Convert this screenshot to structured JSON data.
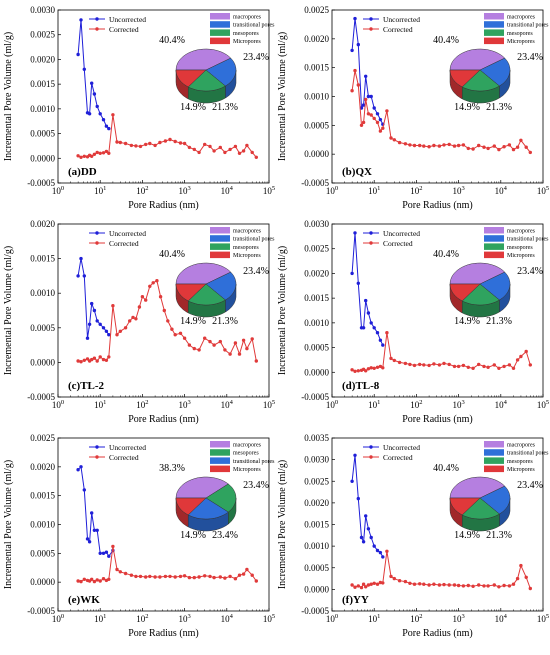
{
  "pie_colors": {
    "macropores": "#b57fe0",
    "transitional pores": "#2f6fd9",
    "mesopores": "#2fa35f",
    "Micropores": "#e0383a"
  },
  "line_colors": {
    "Uncorrected": "#1f1fd8",
    "Corrected": "#e03a3a"
  },
  "chart_data": [
    {
      "type": "line",
      "label": "(a)DD",
      "xlabel": "Pore Radius (nm)",
      "ylabel": "Incremental Pore Volume (ml/g)",
      "xscale": "log",
      "xlim": [
        1,
        100000
      ],
      "xticks": [
        "10^0",
        "10^1",
        "10^2",
        "10^3",
        "10^4",
        "10^5"
      ],
      "ylim": [
        -0.0005,
        0.003
      ],
      "yticks": [
        "-0.0005",
        "0.0000",
        "0.0005",
        "0.0010",
        "0.0015",
        "0.0020",
        "0.0025",
        "0.0030"
      ],
      "legend": "top-left",
      "series": [
        {
          "name": "Uncorrected",
          "x": [
            3,
            3.5,
            4.2,
            5,
            5.6,
            6.3,
            7.3,
            8.5,
            10,
            12,
            14,
            16
          ],
          "y": [
            0.0021,
            0.0028,
            0.0018,
            0.00092,
            0.0009,
            0.00152,
            0.0013,
            0.00105,
            0.0009,
            0.00078,
            0.00065,
            0.0006
          ]
        },
        {
          "name": "Corrected",
          "x": [
            3,
            3.5,
            4.2,
            5,
            5.6,
            6.3,
            7.3,
            8.5,
            10,
            12,
            14,
            16,
            20,
            25,
            30,
            40,
            55,
            70,
            90,
            120,
            150,
            200,
            260,
            350,
            450,
            600,
            800,
            1000,
            1300,
            1700,
            2200,
            3000,
            4000,
            5000,
            7000,
            9000,
            12000,
            16000,
            20000,
            25000,
            30000,
            40000,
            50000
          ],
          "y": [
            5e-05,
            2e-05,
            4e-05,
            3e-05,
            6e-05,
            4e-05,
            8e-05,
            0.00012,
            0.0001,
            0.00011,
            0.00014,
            0.0001,
            0.00088,
            0.00033,
            0.00032,
            0.0003,
            0.00026,
            0.00025,
            0.00024,
            0.00028,
            0.0003,
            0.00026,
            0.00032,
            0.00035,
            0.00038,
            0.00034,
            0.00031,
            0.0003,
            0.00022,
            0.00018,
            0.00012,
            0.00028,
            0.00024,
            0.00015,
            0.00022,
            0.00012,
            0.00018,
            0.00024,
            0.0001,
            0.00015,
            0.00026,
            0.00012,
            2e-05
          ]
        }
      ],
      "pie": {
        "labels": [
          "macropores",
          "transitional pores",
          "mesopores",
          "Micropores"
        ],
        "values": [
          40.4,
          23.4,
          21.3,
          14.9
        ],
        "texts": [
          "40.4%",
          "23.4%",
          "21.3%",
          "14.9%"
        ]
      }
    },
    {
      "type": "line",
      "label": "(b)QX",
      "xlabel": "Pore Radius (nm)",
      "ylabel": "Incremental Pore Volume (ml/g)",
      "xscale": "log",
      "xlim": [
        1,
        100000
      ],
      "xticks": [
        "10^0",
        "10^1",
        "10^2",
        "10^3",
        "10^4",
        "10^5"
      ],
      "ylim": [
        -0.0005,
        0.0025
      ],
      "yticks": [
        "-0.0005",
        "0.0000",
        "0.0005",
        "0.0010",
        "0.0015",
        "0.0020",
        "0.0025"
      ],
      "legend": "top-left",
      "series": [
        {
          "name": "Uncorrected",
          "x": [
            3,
            3.5,
            4.2,
            5,
            5.6,
            6.3,
            7.3,
            8.5,
            10,
            12,
            14,
            16
          ],
          "y": [
            0.0018,
            0.00235,
            0.0019,
            0.0008,
            0.00085,
            0.00135,
            0.001,
            0.001,
            0.0008,
            0.0007,
            0.0006,
            0.00052
          ]
        },
        {
          "name": "Corrected",
          "x": [
            3,
            3.5,
            4.2,
            5,
            5.6,
            6.3,
            7.3,
            8.5,
            10,
            12,
            14,
            16,
            20,
            25,
            30,
            40,
            55,
            70,
            90,
            120,
            150,
            200,
            260,
            350,
            450,
            600,
            800,
            1000,
            1300,
            1700,
            2200,
            3000,
            4000,
            5000,
            7000,
            9000,
            12000,
            16000,
            20000,
            25000,
            30000,
            40000,
            50000
          ],
          "y": [
            0.0011,
            0.00145,
            0.0012,
            0.0005,
            0.00055,
            0.00095,
            0.0007,
            0.00068,
            0.00062,
            0.00055,
            0.0004,
            0.00045,
            0.00075,
            0.00028,
            0.00025,
            0.0002,
            0.00018,
            0.00016,
            0.00015,
            0.00015,
            0.00014,
            0.00013,
            0.00015,
            0.00014,
            0.00016,
            0.00017,
            0.00014,
            0.00015,
            0.00016,
            0.0001,
            9e-05,
            0.00015,
            0.00012,
            0.0001,
            0.00014,
            8e-05,
            0.00013,
            0.00016,
            8e-05,
            0.00012,
            0.00024,
            0.00012,
            3e-05
          ]
        }
      ],
      "pie": {
        "labels": [
          "macropores",
          "transitional pores",
          "mesopores",
          "Micropores"
        ],
        "values": [
          40.4,
          23.4,
          21.3,
          14.9
        ],
        "texts": [
          "40.4%",
          "23.4%",
          "21.3%",
          "14.9%"
        ]
      }
    },
    {
      "type": "line",
      "label": "(c)TL-2",
      "xlabel": "Pore Radius (nm)",
      "ylabel": "Incremental Pore Volume (ml/g)",
      "xscale": "log",
      "xlim": [
        1,
        100000
      ],
      "xticks": [
        "10^0",
        "10^1",
        "10^2",
        "10^3",
        "10^4",
        "10^5"
      ],
      "ylim": [
        -0.0005,
        0.002
      ],
      "yticks": [
        "-0.0005",
        "0.0000",
        "0.0005",
        "0.0010",
        "0.0015",
        "0.0020"
      ],
      "legend": "top-left",
      "series": [
        {
          "name": "Uncorrected",
          "x": [
            3,
            3.5,
            4.2,
            5,
            5.6,
            6.3,
            7.3,
            8.5,
            10,
            12,
            14,
            16
          ],
          "y": [
            0.00125,
            0.0015,
            0.00125,
            0.00035,
            0.00055,
            0.00085,
            0.00075,
            0.0006,
            0.00055,
            0.0005,
            0.00045,
            0.0004
          ]
        },
        {
          "name": "Corrected",
          "x": [
            3,
            3.5,
            4.2,
            5,
            5.6,
            6.3,
            7.3,
            8.5,
            10,
            12,
            14,
            16,
            20,
            25,
            30,
            40,
            50,
            60,
            70,
            85,
            100,
            120,
            150,
            180,
            220,
            270,
            330,
            400,
            500,
            600,
            800,
            1000,
            1300,
            1700,
            2200,
            3000,
            4000,
            5000,
            7000,
            9000,
            12000,
            16000,
            20000,
            25000,
            30000,
            40000,
            50000
          ],
          "y": [
            2e-05,
            1e-05,
            3e-05,
            5e-05,
            2e-05,
            4e-05,
            6e-05,
            2e-05,
            8e-05,
            4e-05,
            3e-05,
            8e-05,
            0.00082,
            0.0004,
            0.00045,
            0.0005,
            0.0006,
            0.00065,
            0.00063,
            0.0008,
            0.00095,
            0.0009,
            0.0011,
            0.00115,
            0.00118,
            0.00095,
            0.00075,
            0.0006,
            0.00048,
            0.0004,
            0.00042,
            0.00035,
            0.00025,
            0.0002,
            0.00018,
            0.00035,
            0.0003,
            0.00025,
            0.0003,
            0.00018,
            0.00012,
            0.00028,
            0.00012,
            0.00032,
            0.0002,
            0.00034,
            2e-05
          ]
        }
      ],
      "pie": {
        "labels": [
          "macropores",
          "transitional pores",
          "mesopores",
          "Micropores"
        ],
        "values": [
          40.4,
          23.4,
          21.3,
          14.9
        ],
        "texts": [
          "40.4%",
          "23.4%",
          "21.3%",
          "14.9%"
        ]
      }
    },
    {
      "type": "line",
      "label": "(d)TL-8",
      "xlabel": "Pore Radius (nm)",
      "ylabel": "Incremental Pore Volume (ml/g)",
      "xscale": "log",
      "xlim": [
        1,
        100000
      ],
      "xticks": [
        "10^0",
        "10^1",
        "10^2",
        "10^3",
        "10^4",
        "10^5"
      ],
      "ylim": [
        -0.0005,
        0.003
      ],
      "yticks": [
        "-0.0005",
        "0.0000",
        "0.0005",
        "0.0010",
        "0.0015",
        "0.0020",
        "0.0025",
        "0.0030"
      ],
      "legend": "top-left",
      "series": [
        {
          "name": "Uncorrected",
          "x": [
            3,
            3.5,
            4.2,
            5,
            5.6,
            6.3,
            7.3,
            8.5,
            10,
            12,
            14,
            16
          ],
          "y": [
            0.002,
            0.00282,
            0.0018,
            0.0009,
            0.0009,
            0.00145,
            0.0012,
            0.001,
            0.0009,
            0.0008,
            0.00065,
            0.00055
          ]
        },
        {
          "name": "Corrected",
          "x": [
            3,
            3.5,
            4.2,
            5,
            5.6,
            6.3,
            7.3,
            8.5,
            10,
            12,
            14,
            16,
            20,
            25,
            30,
            40,
            55,
            70,
            90,
            120,
            150,
            200,
            260,
            350,
            450,
            600,
            800,
            1000,
            1300,
            1700,
            2200,
            3000,
            4000,
            5000,
            7000,
            9000,
            12000,
            16000,
            20000,
            25000,
            30000,
            40000,
            50000
          ],
          "y": [
            5e-05,
            2e-05,
            3e-05,
            4e-05,
            6e-05,
            3e-05,
            7e-05,
            9e-05,
            8e-05,
            0.0001,
            0.00012,
            9e-05,
            0.0008,
            0.00028,
            0.00024,
            0.0002,
            0.00018,
            0.00016,
            0.00014,
            0.00016,
            0.00015,
            0.00014,
            0.00017,
            0.00015,
            0.00018,
            0.00016,
            0.00012,
            0.00012,
            0.00014,
            0.0001,
            8e-05,
            0.00016,
            0.00012,
            0.0001,
            0.00015,
            8e-05,
            0.00012,
            0.00015,
            8e-05,
            0.00025,
            0.00032,
            0.00042,
            0.00015
          ]
        }
      ],
      "pie": {
        "labels": [
          "macropores",
          "transitional pores",
          "mesopores",
          "Micropores"
        ],
        "values": [
          40.4,
          23.4,
          21.3,
          14.9
        ],
        "texts": [
          "40.4%",
          "23.4%",
          "21.3%",
          "14.9%"
        ]
      }
    },
    {
      "type": "line",
      "label": "(e)WK",
      "xlabel": "Pore Radius (nm)",
      "ylabel": "Incremental Pore Volume (ml/g)",
      "xscale": "log",
      "xlim": [
        1,
        100000
      ],
      "xticks": [
        "10^0",
        "10^1",
        "10^2",
        "10^3",
        "10^4",
        "10^5"
      ],
      "ylim": [
        -0.0005,
        0.0025
      ],
      "yticks": [
        "-0.0005",
        "0.0000",
        "0.0005",
        "0.0010",
        "0.0015",
        "0.0020",
        "0.0025"
      ],
      "legend": "top-left",
      "series": [
        {
          "name": "Uncorrected",
          "x": [
            3,
            3.5,
            4.2,
            5,
            5.6,
            6.3,
            7.3,
            8.5,
            10,
            12,
            14,
            16,
            20
          ],
          "y": [
            0.00195,
            0.002,
            0.0016,
            0.00075,
            0.0007,
            0.0012,
            0.0009,
            0.0009,
            0.0005,
            0.0005,
            0.00052,
            0.00045,
            0.00055
          ]
        },
        {
          "name": "Corrected",
          "x": [
            3,
            3.5,
            4.2,
            5,
            5.6,
            6.3,
            7.3,
            8.5,
            10,
            12,
            14,
            16,
            20,
            25,
            30,
            40,
            55,
            70,
            90,
            120,
            150,
            200,
            260,
            350,
            450,
            600,
            800,
            1000,
            1300,
            1700,
            2200,
            3000,
            4000,
            5000,
            7000,
            9000,
            12000,
            16000,
            20000,
            25000,
            30000,
            40000,
            50000
          ],
          "y": [
            2e-05,
            1e-05,
            5e-05,
            3e-05,
            2e-05,
            5e-05,
            1e-05,
            4e-05,
            2e-05,
            6e-05,
            3e-05,
            5e-05,
            0.00062,
            0.00022,
            0.00018,
            0.00015,
            0.00012,
            0.0001,
            0.0001,
            9e-05,
            0.0001,
            9e-05,
            9e-05,
            0.0001,
            0.0001,
            9e-05,
            0.0001,
            0.00011,
            8e-05,
            8e-05,
            9e-05,
            0.00011,
            0.0001,
            8e-05,
            9e-05,
            7e-05,
            0.0001,
            6e-05,
            0.00012,
            0.00014,
            0.00022,
            0.00012,
            2e-05
          ]
        }
      ],
      "pie": {
        "labels": [
          "macropores",
          "mesopores",
          "transitional pores",
          "Micropores"
        ],
        "values": [
          38.3,
          23.4,
          23.4,
          14.9
        ],
        "texts": [
          "38.3%",
          "23.4%",
          "23.4%",
          "14.9%"
        ]
      }
    },
    {
      "type": "line",
      "label": "(f)YY",
      "xlabel": "Pore Radius (nm)",
      "ylabel": "Incremental Pore Volume (ml/g)",
      "xscale": "log",
      "xlim": [
        1,
        100000
      ],
      "xticks": [
        "10^0",
        "10^1",
        "10^2",
        "10^3",
        "10^4",
        "10^5"
      ],
      "ylim": [
        -0.0005,
        0.0035
      ],
      "yticks": [
        "-0.0005",
        "0.0000",
        "0.0005",
        "0.0010",
        "0.0015",
        "0.0020",
        "0.0025",
        "0.0030",
        "0.0035"
      ],
      "legend": "top-left",
      "series": [
        {
          "name": "Uncorrected",
          "x": [
            3,
            3.5,
            4.2,
            5,
            5.6,
            6.3,
            7.3,
            8.5,
            10,
            12,
            14,
            16
          ],
          "y": [
            0.0025,
            0.0031,
            0.0021,
            0.0012,
            0.0011,
            0.0017,
            0.0014,
            0.0012,
            0.001,
            0.0009,
            0.00085,
            0.00075
          ]
        },
        {
          "name": "Corrected",
          "x": [
            3,
            3.5,
            4.2,
            5,
            5.6,
            6.3,
            7.3,
            8.5,
            10,
            12,
            14,
            16,
            20,
            25,
            30,
            40,
            55,
            70,
            90,
            120,
            150,
            200,
            260,
            350,
            450,
            600,
            800,
            1000,
            1300,
            1700,
            2200,
            3000,
            4000,
            5000,
            7000,
            9000,
            12000,
            16000,
            20000,
            25000,
            30000,
            40000,
            50000
          ],
          "y": [
            0.0001,
            5e-05,
            8e-05,
            4e-05,
            0.00012,
            6e-05,
            0.0001,
            0.00012,
            0.00014,
            0.00012,
            0.00016,
            0.00015,
            0.00088,
            0.0003,
            0.00025,
            0.0002,
            0.00018,
            0.00014,
            0.00012,
            0.00013,
            0.00012,
            0.0001,
            0.00012,
            0.0001,
            0.00011,
            0.0001,
            0.0001,
            9e-05,
            8e-05,
            9e-05,
            7e-05,
            0.0001,
            8e-05,
            8e-05,
            0.0001,
            6e-05,
            9e-05,
            8e-05,
            0.00012,
            0.00025,
            0.00055,
            0.00028,
            2e-05
          ]
        }
      ],
      "pie": {
        "labels": [
          "macropores",
          "transitional pores",
          "mesopores",
          "Micropores"
        ],
        "values": [
          40.4,
          23.4,
          21.3,
          14.9
        ],
        "texts": [
          "40.4%",
          "23.4%",
          "21.3%",
          "14.9%"
        ]
      }
    }
  ]
}
